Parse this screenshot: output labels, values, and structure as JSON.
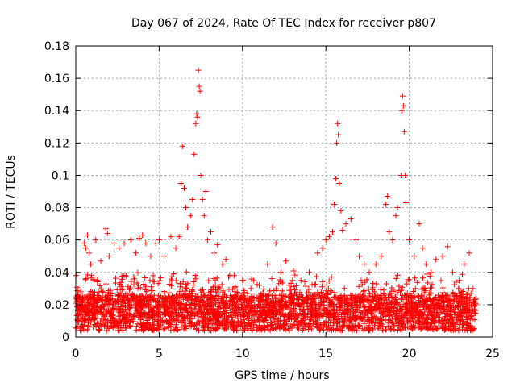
{
  "chart_data": {
    "type": "scatter",
    "title": "Day 067 of 2024, Rate Of TEC Index for receiver p807",
    "xlabel": "GPS time / hours",
    "ylabel": "ROTI / TECUs",
    "xlim": [
      0,
      25
    ],
    "ylim": [
      0,
      0.18
    ],
    "xticks": [
      0,
      5,
      10,
      15,
      20,
      25
    ],
    "xtick_labels": [
      "0",
      "5",
      "10",
      "15",
      "20",
      "25"
    ],
    "yticks": [
      0,
      0.02,
      0.04,
      0.06,
      0.08,
      0.1,
      0.12,
      0.14,
      0.16,
      0.18
    ],
    "ytick_labels": [
      "0",
      "0.02",
      "0.04",
      "0.06",
      "0.08",
      "0.1",
      "0.12",
      "0.14",
      "0.16",
      "0.18"
    ],
    "grid": true,
    "marker": "+",
    "color": "#ff0000",
    "series": [
      {
        "name": "ROTI",
        "points": [
          [
            0.3,
            0.028
          ],
          [
            0.5,
            0.058
          ],
          [
            0.6,
            0.055
          ],
          [
            0.7,
            0.063
          ],
          [
            0.8,
            0.052
          ],
          [
            0.9,
            0.045
          ],
          [
            1.2,
            0.06
          ],
          [
            1.5,
            0.047
          ],
          [
            1.8,
            0.067
          ],
          [
            1.9,
            0.064
          ],
          [
            2.0,
            0.05
          ],
          [
            2.3,
            0.058
          ],
          [
            2.6,
            0.055
          ],
          [
            2.9,
            0.058
          ],
          [
            3.3,
            0.06
          ],
          [
            3.6,
            0.052
          ],
          [
            3.8,
            0.061
          ],
          [
            4.0,
            0.063
          ],
          [
            4.2,
            0.058
          ],
          [
            4.5,
            0.05
          ],
          [
            4.8,
            0.058
          ],
          [
            5.0,
            0.06
          ],
          [
            5.3,
            0.05
          ],
          [
            5.7,
            0.062
          ],
          [
            6.0,
            0.055
          ],
          [
            6.2,
            0.062
          ],
          [
            6.3,
            0.095
          ],
          [
            6.4,
            0.118
          ],
          [
            6.5,
            0.092
          ],
          [
            6.6,
            0.08
          ],
          [
            6.7,
            0.068
          ],
          [
            6.9,
            0.075
          ],
          [
            7.0,
            0.085
          ],
          [
            7.1,
            0.113
          ],
          [
            7.2,
            0.132
          ],
          [
            7.25,
            0.138
          ],
          [
            7.3,
            0.136
          ],
          [
            7.35,
            0.165
          ],
          [
            7.4,
            0.155
          ],
          [
            7.45,
            0.152
          ],
          [
            7.5,
            0.1
          ],
          [
            7.6,
            0.085
          ],
          [
            7.7,
            0.075
          ],
          [
            7.8,
            0.09
          ],
          [
            7.9,
            0.06
          ],
          [
            8.1,
            0.065
          ],
          [
            8.3,
            0.052
          ],
          [
            8.5,
            0.057
          ],
          [
            8.8,
            0.045
          ],
          [
            9.0,
            0.048
          ],
          [
            9.5,
            0.038
          ],
          [
            10.0,
            0.035
          ],
          [
            10.5,
            0.03
          ],
          [
            11.0,
            0.032
          ],
          [
            11.5,
            0.045
          ],
          [
            11.8,
            0.068
          ],
          [
            12.0,
            0.058
          ],
          [
            12.3,
            0.04
          ],
          [
            12.6,
            0.047
          ],
          [
            13.0,
            0.035
          ],
          [
            13.5,
            0.035
          ],
          [
            14.0,
            0.04
          ],
          [
            14.5,
            0.052
          ],
          [
            14.8,
            0.055
          ],
          [
            15.0,
            0.06
          ],
          [
            15.2,
            0.062
          ],
          [
            15.4,
            0.065
          ],
          [
            15.5,
            0.082
          ],
          [
            15.6,
            0.098
          ],
          [
            15.65,
            0.12
          ],
          [
            15.7,
            0.132
          ],
          [
            15.75,
            0.125
          ],
          [
            15.8,
            0.095
          ],
          [
            15.9,
            0.078
          ],
          [
            16.0,
            0.066
          ],
          [
            16.2,
            0.07
          ],
          [
            16.5,
            0.073
          ],
          [
            16.8,
            0.06
          ],
          [
            17.0,
            0.05
          ],
          [
            17.3,
            0.045
          ],
          [
            17.6,
            0.04
          ],
          [
            18.0,
            0.045
          ],
          [
            18.3,
            0.05
          ],
          [
            18.6,
            0.082
          ],
          [
            18.7,
            0.087
          ],
          [
            18.8,
            0.065
          ],
          [
            19.0,
            0.06
          ],
          [
            19.2,
            0.075
          ],
          [
            19.3,
            0.08
          ],
          [
            19.5,
            0.1
          ],
          [
            19.55,
            0.14
          ],
          [
            19.6,
            0.149
          ],
          [
            19.65,
            0.143
          ],
          [
            19.7,
            0.127
          ],
          [
            19.75,
            0.1
          ],
          [
            19.8,
            0.083
          ],
          [
            20.0,
            0.06
          ],
          [
            20.3,
            0.05
          ],
          [
            20.6,
            0.07
          ],
          [
            20.8,
            0.055
          ],
          [
            21.0,
            0.045
          ],
          [
            21.3,
            0.04
          ],
          [
            21.6,
            0.048
          ],
          [
            22.0,
            0.05
          ],
          [
            22.3,
            0.056
          ],
          [
            22.6,
            0.04
          ],
          [
            23.0,
            0.035
          ],
          [
            23.3,
            0.045
          ],
          [
            23.6,
            0.052
          ],
          [
            23.8,
            0.03
          ],
          [
            24.0,
            0.02
          ]
        ]
      }
    ]
  }
}
